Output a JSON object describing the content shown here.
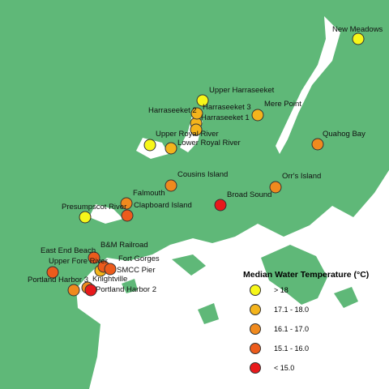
{
  "legend": {
    "title": "Median Water Temperature (°C)",
    "classes": [
      {
        "label": "> 18",
        "color": "#f7f719"
      },
      {
        "label": "17.1 - 18.0",
        "color": "#f4b41c"
      },
      {
        "label": "16.1 - 17.0",
        "color": "#f08a1e"
      },
      {
        "label": "15.1 - 16.0",
        "color": "#ec5b1c"
      },
      {
        "label": "< 15.0",
        "color": "#e8191b"
      }
    ]
  },
  "colors": {
    "land": "#5fb878",
    "water": "#ffffff",
    "marker_stroke": "#333333"
  },
  "sites": [
    {
      "name": "New Meadows",
      "class": 0
    },
    {
      "name": "Upper Harraseeket",
      "class": 0
    },
    {
      "name": "Harraseeket 2",
      "class": 1
    },
    {
      "name": "Harraseeket 3",
      "class": 1
    },
    {
      "name": "Harraseeket 1",
      "class": 1
    },
    {
      "name": "Mere Point",
      "class": 1
    },
    {
      "name": "Upper Royal River",
      "class": 0
    },
    {
      "name": "Lower Royal River",
      "class": 1
    },
    {
      "name": "Quahog Bay",
      "class": 2
    },
    {
      "name": "Cousins Island",
      "class": 2
    },
    {
      "name": "Orr's Island",
      "class": 2
    },
    {
      "name": "Falmouth",
      "class": 2
    },
    {
      "name": "Broad Sound",
      "class": 4
    },
    {
      "name": "Clapboard Island",
      "class": 3
    },
    {
      "name": "Presumpscot River",
      "class": 0
    },
    {
      "name": "B&M Railroad",
      "class": 3
    },
    {
      "name": "East End Beach",
      "class": 3
    },
    {
      "name": "Upper Fore River",
      "class": 1
    },
    {
      "name": "Fort Gorges",
      "class": 3
    },
    {
      "name": "SMCC Pier",
      "class": 3
    },
    {
      "name": "Portland Harbor 3",
      "class": 2
    },
    {
      "name": "Knightville",
      "class": 2
    },
    {
      "name": "Portland Harbor 2",
      "class": 4
    }
  ]
}
